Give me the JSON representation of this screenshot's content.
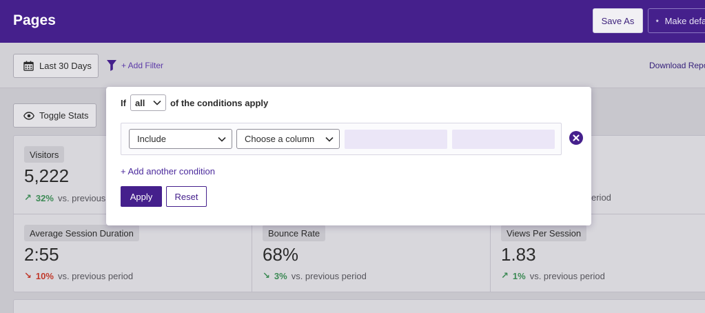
{
  "header": {
    "title": "Pages",
    "save_as_label": "Save As",
    "make_default_label": "Make default",
    "make_default_icon": "star-icon"
  },
  "toolbar": {
    "date_range_label": "Last 30 Days",
    "date_icon": "calendar-icon",
    "filter_icon": "filter-icon",
    "add_filter_label": "+ Add Filter",
    "download_label": "Download Report"
  },
  "toggle_stats_label": "Toggle Stats",
  "stats": {
    "visitors": {
      "label": "Visitors",
      "value": "5,222",
      "change": "32%",
      "direction": "up",
      "compare": "vs. previous"
    },
    "behind_popover_text": "eriod",
    "avg_session": {
      "label": "Average Session Duration",
      "value": "2:55",
      "change": "10%",
      "direction": "down",
      "compare": "vs. previous period"
    },
    "bounce_rate": {
      "label": "Bounce Rate",
      "value": "68%",
      "change": "3%",
      "direction": "down-good",
      "compare": "vs. previous period"
    },
    "views_per_session": {
      "label": "Views Per Session",
      "value": "1.83",
      "change": "1%",
      "direction": "up",
      "compare": "vs. previous period"
    }
  },
  "filter_popover": {
    "prefix": "If",
    "match_mode": "all",
    "suffix": "of the conditions apply",
    "condition": {
      "include_value": "Include",
      "column_placeholder": "Choose a column"
    },
    "add_condition_label": "+ Add another condition",
    "apply_label": "Apply",
    "reset_label": "Reset"
  },
  "colors": {
    "brand": "#45208c",
    "positive": "#3c8a55",
    "negative": "#c0392b"
  }
}
